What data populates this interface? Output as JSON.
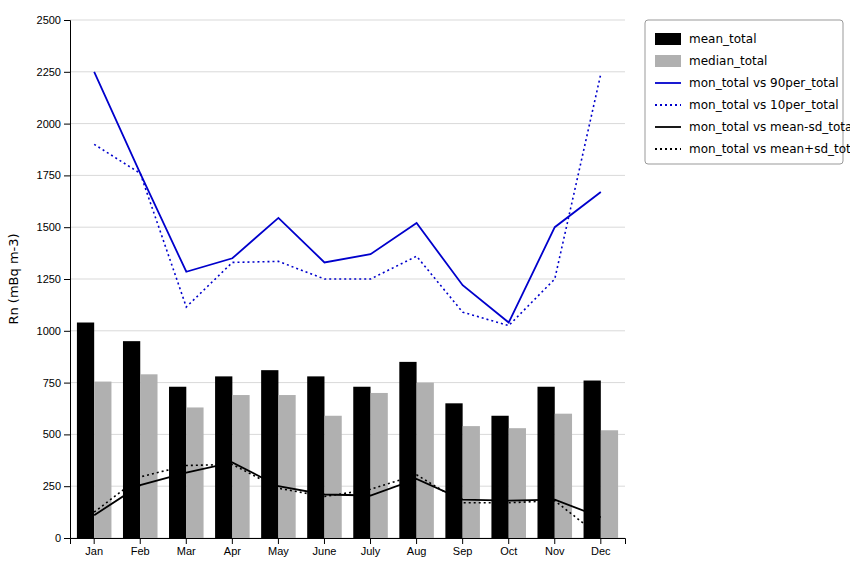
{
  "chart_data": {
    "type": "bar",
    "categories": [
      "Jan",
      "Feb",
      "Mar",
      "Apr",
      "May",
      "June",
      "July",
      "Aug",
      "Sep",
      "Oct",
      "Nov",
      "Dec"
    ],
    "series": [
      {
        "name": "mean_total",
        "type": "bar",
        "color": "#000000",
        "values": [
          1040,
          950,
          730,
          780,
          810,
          780,
          730,
          850,
          650,
          590,
          730,
          760
        ]
      },
      {
        "name": "median_total",
        "type": "bar",
        "color": "#b0b0b0",
        "values": [
          755,
          790,
          630,
          690,
          690,
          590,
          700,
          750,
          540,
          530,
          600,
          520
        ]
      },
      {
        "name": "mon_total vs 90per_total",
        "type": "line",
        "color": "#0000cc",
        "line_style": "solid",
        "values": [
          2250,
          1760,
          1285,
          1350,
          1545,
          1330,
          1370,
          1520,
          1220,
          1040,
          1500,
          1670
        ]
      },
      {
        "name": "mon_total vs 10per_total",
        "type": "line",
        "color": "#0000cc",
        "line_style": "dotted",
        "values": [
          1900,
          1760,
          1115,
          1330,
          1335,
          1250,
          1250,
          1360,
          1090,
          1025,
          1250,
          2240
        ]
      },
      {
        "name": "mon_total vs mean-sd_total",
        "type": "line",
        "color": "#000000",
        "line_style": "solid",
        "values": [
          110,
          255,
          315,
          365,
          250,
          210,
          205,
          285,
          185,
          180,
          185,
          100
        ]
      },
      {
        "name": "mon_total vs mean+sd_total",
        "type": "line",
        "color": "#000000",
        "line_style": "dotted",
        "values": [
          125,
          295,
          350,
          355,
          240,
          200,
          235,
          305,
          170,
          170,
          180,
          5
        ]
      }
    ],
    "ylabel": "Rn (mBq m-3)",
    "ylim": [
      0,
      2500
    ],
    "yticks": [
      0,
      250,
      500,
      750,
      1000,
      1250,
      1500,
      1750,
      2000,
      2250,
      2500
    ],
    "grid": true,
    "legend": "upper right"
  }
}
